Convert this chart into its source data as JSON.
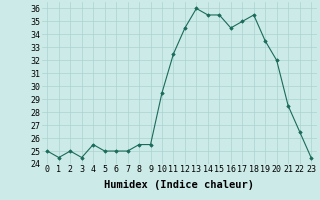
{
  "x": [
    0,
    1,
    2,
    3,
    4,
    5,
    6,
    7,
    8,
    9,
    10,
    11,
    12,
    13,
    14,
    15,
    16,
    17,
    18,
    19,
    20,
    21,
    22,
    23
  ],
  "y": [
    25.0,
    24.5,
    25.0,
    24.5,
    25.5,
    25.0,
    25.0,
    25.0,
    25.5,
    25.5,
    29.5,
    32.5,
    34.5,
    36.0,
    35.5,
    35.5,
    34.5,
    35.0,
    35.5,
    33.5,
    32.0,
    28.5,
    26.5,
    24.5
  ],
  "xlabel": "Humidex (Indice chaleur)",
  "ylim": [
    24,
    36.5
  ],
  "yticks": [
    24,
    25,
    26,
    27,
    28,
    29,
    30,
    31,
    32,
    33,
    34,
    35,
    36
  ],
  "xticks": [
    0,
    1,
    2,
    3,
    4,
    5,
    6,
    7,
    8,
    9,
    10,
    11,
    12,
    13,
    14,
    15,
    16,
    17,
    18,
    19,
    20,
    21,
    22,
    23
  ],
  "line_color": "#1a6b5a",
  "marker_color": "#1a6b5a",
  "bg_color": "#cceae8",
  "grid_color": "#aad4d0",
  "xlabel_fontsize": 7.5,
  "tick_fontsize": 6.0
}
